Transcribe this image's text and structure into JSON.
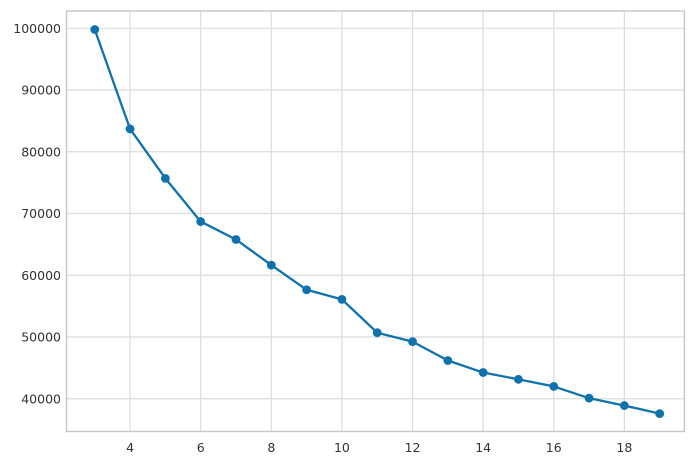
{
  "chart_data": {
    "type": "line",
    "title": "",
    "xlabel": "",
    "ylabel": "",
    "x": [
      3,
      4,
      5,
      6,
      7,
      8,
      9,
      10,
      11,
      12,
      13,
      14,
      15,
      16,
      17,
      18,
      19
    ],
    "values": [
      99800,
      83700,
      75700,
      68700,
      65800,
      61650,
      57650,
      56100,
      50700,
      49250,
      46200,
      44250,
      43150,
      42000,
      40100,
      38900,
      37600
    ],
    "x_tick_labels": [
      "4",
      "6",
      "8",
      "10",
      "12",
      "14",
      "16",
      "18"
    ],
    "x_tick_values": [
      4,
      6,
      8,
      10,
      12,
      14,
      16,
      18
    ],
    "y_tick_labels": [
      "40000",
      "50000",
      "60000",
      "70000",
      "80000",
      "90000",
      "100000"
    ],
    "y_tick_values": [
      40000,
      50000,
      60000,
      70000,
      80000,
      90000,
      100000
    ],
    "xlim": [
      2.2,
      19.7
    ],
    "ylim": [
      34700,
      102800
    ],
    "grid": true,
    "legend": false,
    "marker": "circle",
    "colors": {
      "line": "#0f72ad",
      "marker": "#0f72ad",
      "grid": "#dcdcdc",
      "spine": "#c6c6c6",
      "tick_text": "#333333",
      "background": "#ffffff"
    }
  }
}
